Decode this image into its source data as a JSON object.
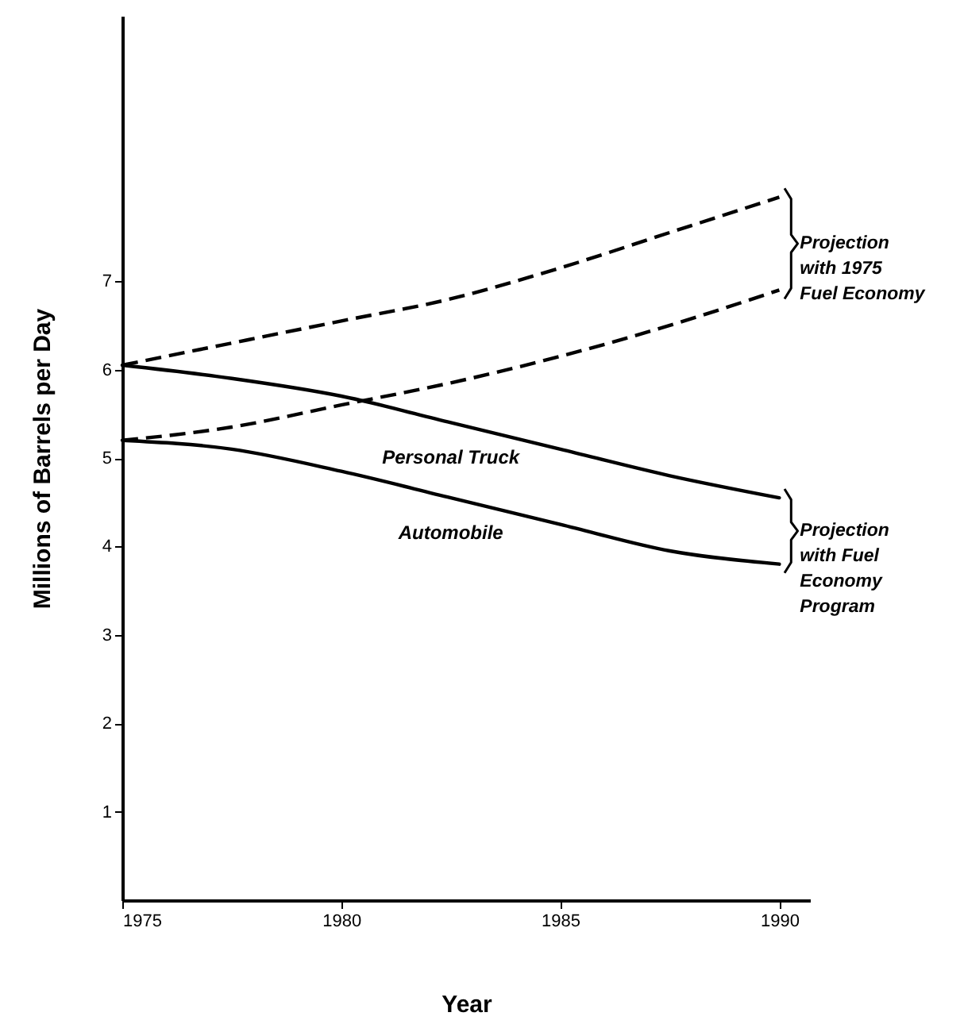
{
  "chart_data": {
    "type": "line",
    "xlabel": "Year",
    "ylabel": "Millions of Barrels per Day",
    "x": [
      1975,
      1977.5,
      1980,
      1982.5,
      1985,
      1987.5,
      1990
    ],
    "series": [
      {
        "color": "#000000",
        "line_style": "dashed",
        "values": [
          6.05,
          6.3,
          6.55,
          6.8,
          7.15,
          7.55,
          7.95
        ]
      },
      {
        "color": "#000000",
        "line_style": "dashed",
        "values": [
          5.2,
          5.35,
          5.6,
          5.85,
          6.15,
          6.5,
          6.9
        ]
      },
      {
        "name": "Personal Truck",
        "color": "#000000",
        "line_style": "solid",
        "values": [
          6.05,
          5.9,
          5.7,
          5.4,
          5.1,
          4.8,
          4.55
        ]
      },
      {
        "name": "Automobile",
        "color": "#000000",
        "line_style": "solid",
        "values": [
          5.2,
          5.1,
          4.85,
          4.55,
          4.25,
          3.95,
          3.8
        ]
      }
    ],
    "annotations": [
      "Projection with 1975 Fuel Economy",
      "Projection with Fuel Economy Program"
    ],
    "xlim": [
      1975,
      1990.7
    ],
    "ylim": [
      0,
      10
    ],
    "xticks": [
      1975,
      1980,
      1985,
      1990
    ],
    "yticks": [
      1,
      2,
      3,
      4,
      5,
      6,
      7
    ],
    "grid": false
  }
}
